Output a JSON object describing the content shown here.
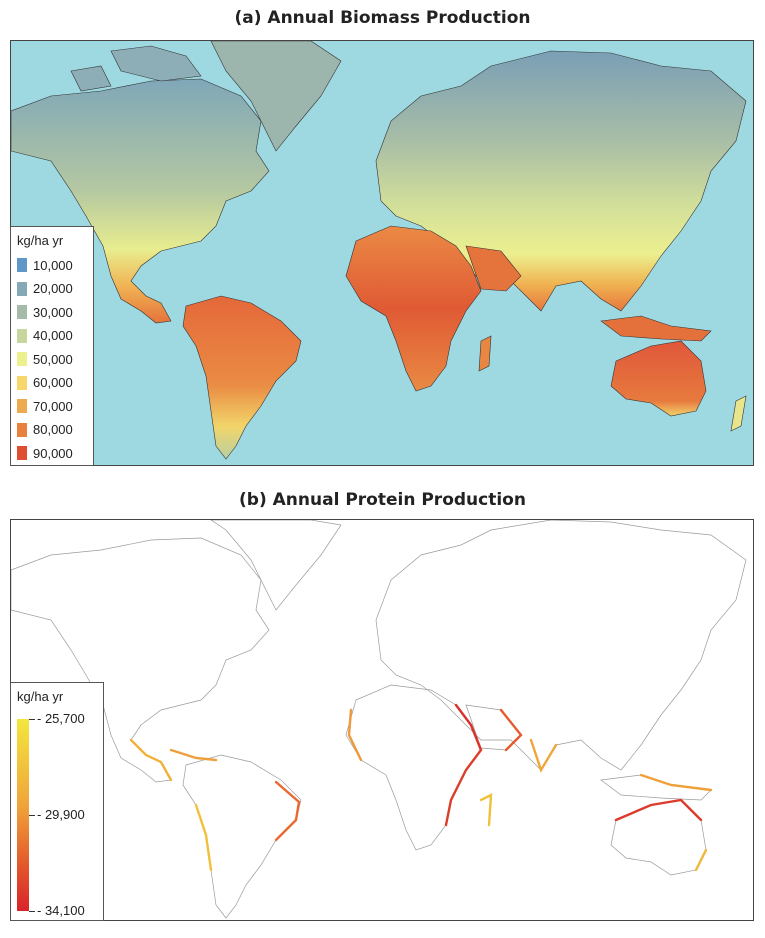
{
  "panels": [
    {
      "title": "(a) Annual Biomass Production",
      "legend": {
        "title": "kg/ha yr",
        "entries": [
          {
            "label": "10,000",
            "color": "#5e97c8"
          },
          {
            "label": "20,000",
            "color": "#85a9b6"
          },
          {
            "label": "30,000",
            "color": "#a4bca7"
          },
          {
            "label": "40,000",
            "color": "#c6d69d"
          },
          {
            "label": "50,000",
            "color": "#ecf08f"
          },
          {
            "label": "60,000",
            "color": "#f7d76b"
          },
          {
            "label": "70,000",
            "color": "#eeaa4f"
          },
          {
            "label": "80,000",
            "color": "#e8803e"
          },
          {
            "label": "90,000",
            "color": "#df4e32"
          }
        ]
      }
    },
    {
      "title": "(b) Annual Protein Production",
      "legend": {
        "title": "kg/ha yr",
        "ticks": [
          {
            "label": "25,700",
            "fraction": 0.0
          },
          {
            "label": "29,900",
            "fraction": 0.5
          },
          {
            "label": "34,100",
            "fraction": 1.0
          }
        ],
        "gradient_colors": [
          "#f3e73d",
          "#f0a43a",
          "#e45a2c",
          "#d9232b"
        ]
      }
    }
  ],
  "colors": {
    "ocean": "#9ed8e1",
    "arctic": "#8fb0b5",
    "temperate": "#b8c99f",
    "subtropical": "#e9ee90",
    "tropical": "#e77e40",
    "hot": "#e0603a",
    "greenland": "#9cb6ad",
    "outline": "#9a9a9a",
    "coast_yellow": "#f2c23b",
    "coast_red": "#db3b2c"
  }
}
